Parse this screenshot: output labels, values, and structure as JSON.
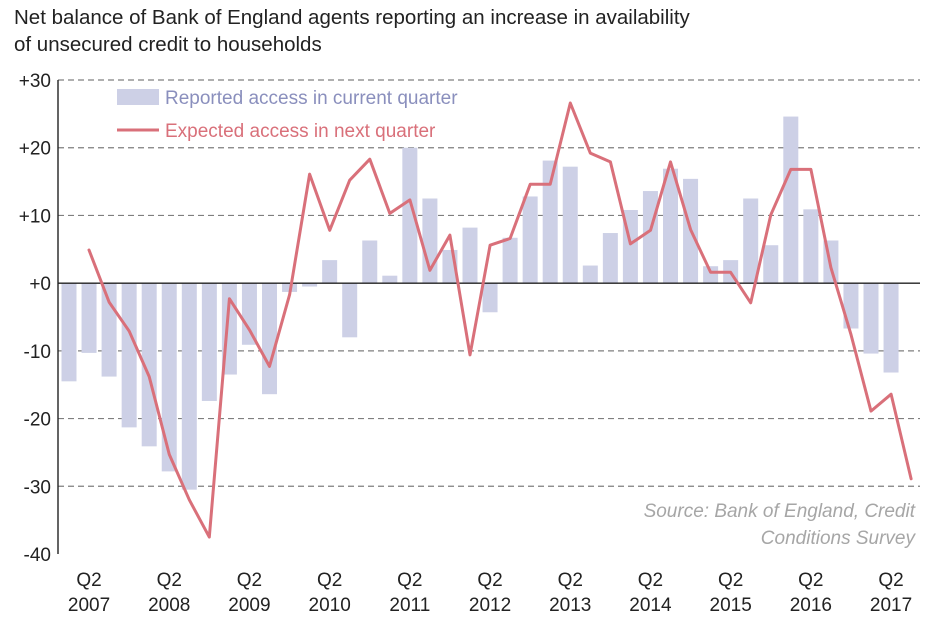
{
  "chart_data": {
    "type": "bar",
    "title_lines": [
      "Net balance of Bank of England agents reporting an increase in availability",
      "of unsecured credit to households"
    ],
    "xlabel": "",
    "ylabel": "",
    "ylim": [
      -40,
      30
    ],
    "y_ticks": [
      "+30",
      "+20",
      "+10",
      "+0",
      "-10",
      "-20",
      "-30",
      "-40"
    ],
    "y_tick_values": [
      30,
      20,
      10,
      0,
      -10,
      -20,
      -30,
      -40
    ],
    "x_ticks": [
      {
        "q": "Q2",
        "year": "2007",
        "index": 1
      },
      {
        "q": "Q2",
        "year": "2008",
        "index": 5
      },
      {
        "q": "Q2",
        "year": "2009",
        "index": 9
      },
      {
        "q": "Q2",
        "year": "2010",
        "index": 13
      },
      {
        "q": "Q2",
        "year": "2011",
        "index": 17
      },
      {
        "q": "Q2",
        "year": "2012",
        "index": 21
      },
      {
        "q": "Q2",
        "year": "2013",
        "index": 25
      },
      {
        "q": "Q2",
        "year": "2014",
        "index": 29
      },
      {
        "q": "Q2",
        "year": "2015",
        "index": 33
      },
      {
        "q": "Q2",
        "year": "2016",
        "index": 37
      },
      {
        "q": "Q2",
        "year": "2017",
        "index": 41
      }
    ],
    "grid": "horizontal-dashed",
    "legend_position": "top-left",
    "series": [
      {
        "name": "Reported access in current quarter",
        "kind": "bar",
        "color": "#cdd0e6",
        "legend_text_color": "#8a8fbd",
        "start_index": 0,
        "values": [
          -14.5,
          -10.3,
          -13.8,
          -21.3,
          -24.1,
          -27.8,
          -30.5,
          -17.4,
          -13.5,
          -9.1,
          -16.4,
          -1.3,
          -0.5,
          3.4,
          -8.0,
          6.3,
          1.1,
          20.0,
          12.5,
          4.9,
          8.2,
          -4.3,
          6.7,
          12.8,
          18.1,
          17.2,
          2.6,
          7.4,
          10.8,
          13.6,
          16.9,
          15.4,
          2.5,
          3.4,
          12.5,
          5.6,
          24.6,
          10.9,
          6.3,
          -6.7,
          -10.4,
          -13.2
        ]
      },
      {
        "name": "Expected access in next quarter",
        "kind": "line",
        "color": "#d9707a",
        "legend_text_color": "#d9707a",
        "start_index": 1,
        "values": [
          4.9,
          -2.8,
          -7.1,
          -13.8,
          -25.3,
          -32.0,
          -37.5,
          -2.3,
          -6.9,
          -12.3,
          -1.7,
          16.1,
          7.8,
          15.2,
          18.3,
          10.3,
          12.3,
          1.9,
          7.1,
          -10.6,
          5.6,
          6.6,
          14.6,
          14.6,
          26.6,
          19.2,
          17.9,
          5.8,
          7.8,
          17.9,
          7.9,
          1.6,
          1.6,
          -2.9,
          10.1,
          16.8,
          16.8,
          2.3,
          -7.6,
          -18.9,
          -16.4,
          -28.9
        ]
      }
    ],
    "annotation_lines": [
      "Source: Bank of England, Credit",
      "Conditions Survey"
    ]
  }
}
